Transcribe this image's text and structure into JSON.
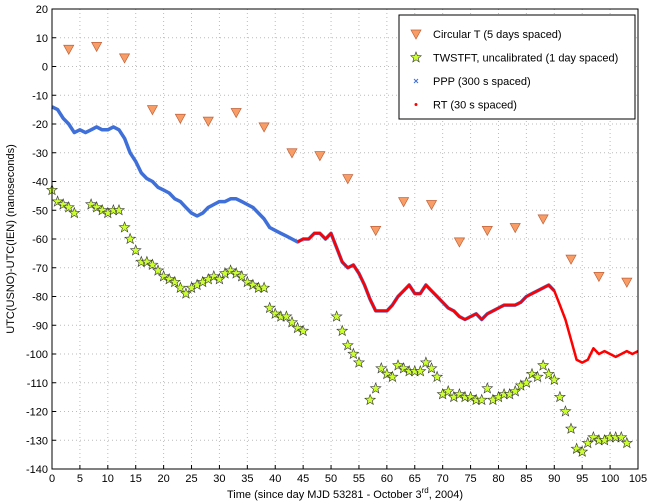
{
  "chart_data": {
    "type": "scatter",
    "ylabel": "UTC(USNO)-UTC(IEN) (nanoseconds)",
    "xlabel": {
      "main": "Time (since day MJD 53281 - October 3",
      "sup": "rd",
      "end": ", 2004)"
    },
    "xlim": [
      0,
      105
    ],
    "ylim": [
      -140,
      20
    ],
    "xticks": [
      0,
      5,
      10,
      15,
      20,
      25,
      30,
      35,
      40,
      45,
      50,
      55,
      60,
      65,
      70,
      75,
      80,
      85,
      90,
      95,
      100,
      105
    ],
    "yticks": [
      20,
      10,
      0,
      -10,
      -20,
      -30,
      -40,
      -50,
      -60,
      -70,
      -80,
      -90,
      -100,
      -110,
      -120,
      -130,
      -140
    ],
    "grid": true,
    "legend": "top-right",
    "series": [
      {
        "name": "Circular T (5 days spaced)",
        "color": "#f79d65",
        "marker": "triangle-down",
        "x": [
          3,
          8,
          13,
          18,
          23,
          28,
          33,
          38,
          43,
          48,
          53,
          58,
          63,
          68,
          73,
          78,
          83,
          88,
          93,
          98,
          103
        ],
        "values": [
          6,
          7,
          3,
          -15,
          -18,
          -19,
          -16,
          -21,
          -30,
          -31,
          -39,
          -57,
          -47,
          -48,
          -61,
          -57,
          -56,
          -53,
          -67,
          -73,
          -75
        ]
      },
      {
        "name": "TWSTFT, uncalibrated (1 day spaced)",
        "color": "#ccff33",
        "marker": "star",
        "x": [
          0,
          1,
          2,
          3,
          4,
          7,
          8,
          9,
          10,
          11,
          12,
          13,
          14,
          15,
          16,
          17,
          18,
          19,
          20,
          21,
          22,
          23,
          24,
          25,
          26,
          27,
          28,
          29,
          30,
          31,
          32,
          33,
          34,
          35,
          36,
          37,
          38,
          39,
          40,
          41,
          42,
          43,
          44,
          45,
          51,
          52,
          53,
          54,
          55,
          57,
          58,
          59,
          60,
          61,
          62,
          63,
          64,
          65,
          66,
          67,
          68,
          69,
          70,
          71,
          72,
          73,
          74,
          75,
          76,
          77,
          78,
          79,
          80,
          81,
          82,
          83,
          84,
          85,
          86,
          87,
          88,
          89,
          90,
          91,
          92,
          93,
          94,
          95,
          96,
          97,
          98,
          99,
          100,
          101,
          102,
          103
        ],
        "values": [
          -43,
          -47,
          -48,
          -49,
          -51,
          -48,
          -49,
          -50,
          -51,
          -50,
          -50,
          -56,
          -60,
          -64,
          -68,
          -68,
          -69,
          -71,
          -73,
          -74,
          -75,
          -77,
          -79,
          -77,
          -76,
          -75,
          -74,
          -73,
          -74,
          -72,
          -71,
          -72,
          -73,
          -75,
          -76,
          -77,
          -77,
          -84,
          -86,
          -87,
          -87,
          -89,
          -91,
          -92,
          -87,
          -92,
          -97,
          -100,
          -103,
          -116,
          -112,
          -105,
          -107,
          -108,
          -104,
          -105,
          -106,
          -106,
          -106,
          -103,
          -105,
          -108,
          -114,
          -113,
          -115,
          -114,
          -115,
          -115,
          -116,
          -116,
          -112,
          -116,
          -115,
          -114,
          -114,
          -113,
          -111,
          -110,
          -107,
          -108,
          -104,
          -107,
          -109,
          -115,
          -120,
          -126,
          -133,
          -134,
          -131,
          -129,
          -130,
          -130,
          -129,
          -129,
          -129,
          -131
        ]
      },
      {
        "name": "PPP (300 s spaced)",
        "color": "#3f6fd8",
        "marker": "x",
        "x": [
          0,
          1,
          2,
          3,
          4,
          5,
          6,
          7,
          8,
          9,
          10,
          11,
          12,
          13,
          14,
          15,
          16,
          17,
          18,
          19,
          20,
          21,
          22,
          23,
          24,
          25,
          26,
          27,
          28,
          29,
          30,
          31,
          32,
          33,
          34,
          35,
          36,
          37,
          38,
          39,
          40,
          41,
          42,
          43,
          44,
          45,
          46,
          47,
          48,
          49,
          50,
          51,
          52,
          53,
          54,
          55,
          56,
          57,
          58,
          59,
          60,
          61,
          62,
          63,
          64,
          65,
          66,
          67,
          68,
          69,
          70,
          71,
          72,
          73,
          74,
          75,
          76,
          77,
          78,
          79,
          80,
          81,
          82,
          83,
          84,
          85,
          86,
          87,
          88,
          89,
          90
        ],
        "values": [
          -14,
          -15,
          -18,
          -20,
          -23,
          -22,
          -23,
          -22,
          -21,
          -22,
          -22,
          -21,
          -22,
          -25,
          -30,
          -33,
          -37,
          -39,
          -40,
          -42,
          -43,
          -44,
          -46,
          -47,
          -49,
          -51,
          -52,
          -51,
          -49,
          -48,
          -47,
          -47,
          -46,
          -46,
          -47,
          -48,
          -49,
          -51,
          -53,
          -56,
          -57,
          -58,
          -59,
          -60,
          -61,
          -60,
          -60,
          -58,
          -58,
          -60,
          -58,
          -63,
          -68,
          -70,
          -69,
          -72,
          -76,
          -81,
          -85,
          -85,
          -85,
          -83,
          -80,
          -78,
          -76,
          -79,
          -79,
          -76,
          -78,
          -80,
          -82,
          -84,
          -85,
          -87,
          -88,
          -87,
          -86,
          -88,
          -86,
          -85,
          -84,
          -83,
          -83,
          -83,
          -82,
          -80,
          -79,
          -78,
          -77,
          -76,
          -78
        ]
      },
      {
        "name": "RT (30 s spaced)",
        "color": "#ff0000",
        "marker": "dot",
        "x": [
          44,
          45,
          46,
          47,
          48,
          49,
          50,
          51,
          52,
          53,
          54,
          55,
          56,
          57,
          58,
          59,
          60,
          61,
          62,
          63,
          64,
          65,
          66,
          67,
          68,
          69,
          70,
          71,
          72,
          73,
          74,
          75,
          76,
          77,
          78,
          79,
          80,
          81,
          82,
          83,
          84,
          85,
          86,
          87,
          88,
          89,
          90,
          91,
          92,
          93,
          94,
          95,
          96,
          97,
          98,
          99,
          100,
          101,
          102,
          103,
          104,
          105
        ],
        "values": [
          -61,
          -60,
          -60,
          -58,
          -58,
          -60,
          -58,
          -63,
          -68,
          -70,
          -69,
          -72,
          -76,
          -81,
          -85,
          -85,
          -85,
          -83,
          -80,
          -78,
          -76,
          -79,
          -79,
          -76,
          -78,
          -80,
          -82,
          -84,
          -85,
          -87,
          -88,
          -87,
          -86,
          -88,
          -86,
          -85,
          -84,
          -83,
          -83,
          -83,
          -82,
          -80,
          -79,
          -78,
          -77,
          -76,
          -78,
          -83,
          -88,
          -95,
          -102,
          -103,
          -102,
          -98,
          -100,
          -99,
          -100,
          -101,
          -100,
          -99,
          -100,
          -99
        ]
      }
    ]
  }
}
